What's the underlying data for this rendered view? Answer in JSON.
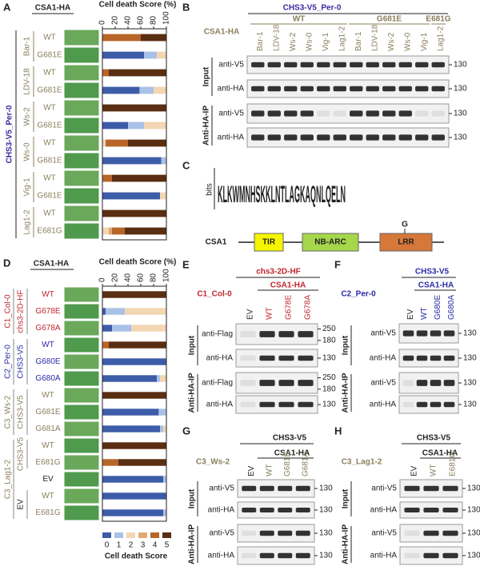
{
  "chart_data": [
    {
      "type": "bar",
      "orientation": "horizontal",
      "stacked": true,
      "title": "Cell death Score (%)",
      "categories": [
        "WT",
        "G681E",
        "WT",
        "G681E",
        "WT",
        "G681E",
        "WT",
        "G681E",
        "WT",
        "G681E",
        "WT",
        "E681G"
      ],
      "xlim": [
        0,
        100
      ],
      "xticks": [
        0,
        20,
        40,
        60,
        80,
        100
      ],
      "series": [
        {
          "color": "#3d5ca8",
          "values": [
            0,
            65,
            0,
            58,
            0,
            40,
            0,
            92,
            0,
            90,
            0,
            0
          ]
        },
        {
          "color": "#a9c1e6",
          "values": [
            0,
            20,
            0,
            22,
            0,
            25,
            0,
            8,
            0,
            0,
            0,
            0
          ]
        },
        {
          "color": "#f3d6b3",
          "values": [
            0,
            15,
            0,
            20,
            0,
            35,
            5,
            0,
            0,
            10,
            0,
            10
          ]
        },
        {
          "color": "#e2aa72",
          "values": [
            0,
            0,
            0,
            0,
            0,
            0,
            0,
            0,
            0,
            0,
            0,
            5
          ]
        },
        {
          "color": "#b8652a",
          "values": [
            60,
            0,
            10,
            0,
            0,
            0,
            35,
            0,
            15,
            0,
            0,
            20
          ]
        },
        {
          "color": "#5a2e12",
          "values": [
            40,
            0,
            90,
            0,
            100,
            0,
            60,
            0,
            85,
            0,
            100,
            65
          ]
        }
      ]
    },
    {
      "type": "bar",
      "orientation": "horizontal",
      "stacked": true,
      "title": "Cell death Score (%)",
      "categories": [
        "WT",
        "G678E",
        "G678A",
        "WT",
        "G680E",
        "G680A",
        "WT",
        "G681E",
        "G681A",
        "WT",
        "E681G",
        "EV",
        "WT",
        "E681G"
      ],
      "xlim": [
        0,
        100
      ],
      "xticks": [
        0,
        20,
        40,
        60,
        80,
        100
      ],
      "legend_title": "Cell death Score",
      "series": [
        {
          "name": "0",
          "color": "#3d5ca8",
          "values": [
            0,
            5,
            15,
            0,
            100,
            85,
            0,
            88,
            90,
            0,
            0,
            95,
            100,
            95
          ]
        },
        {
          "name": "1",
          "color": "#a9c1e6",
          "values": [
            0,
            30,
            30,
            0,
            0,
            5,
            0,
            12,
            5,
            0,
            0,
            5,
            0,
            5
          ]
        },
        {
          "name": "2",
          "color": "#f3d6b3",
          "values": [
            0,
            65,
            55,
            0,
            0,
            10,
            0,
            0,
            5,
            0,
            0,
            0,
            0,
            0
          ]
        },
        {
          "name": "3",
          "color": "#e2aa72",
          "values": [
            0,
            0,
            0,
            0,
            0,
            0,
            0,
            0,
            0,
            0,
            0,
            0,
            0,
            0
          ]
        },
        {
          "name": "4",
          "color": "#b8652a",
          "values": [
            0,
            0,
            0,
            10,
            0,
            0,
            0,
            0,
            0,
            0,
            25,
            0,
            0,
            0
          ]
        },
        {
          "name": "5",
          "color": "#5a2e12",
          "values": [
            100,
            0,
            0,
            90,
            0,
            0,
            100,
            0,
            0,
            100,
            75,
            0,
            0,
            0
          ]
        }
      ]
    }
  ],
  "panel_a": {
    "letter": "A",
    "header": "CSA1-HA",
    "genotype": "CHS3-V5_Per-0",
    "groups": [
      "Bar-1",
      "LDV-18",
      "Ws-2",
      "Ws-0",
      "Vig-1",
      "Lag1-2"
    ]
  },
  "panel_d": {
    "letter": "D",
    "header": "CSA1-HA",
    "outer": [
      "C1_Col-0",
      "C2_Per-0",
      "C3_Ws-2",
      "C3_Lag1-2"
    ],
    "inner": [
      "chs3-2D-HF",
      "CHS3-V5",
      "CHS3-V5",
      "CHS3-V5",
      "EV"
    ]
  },
  "panel_b": {
    "letter": "B",
    "title": "CHS3-V5_Per-0",
    "construct": "CSA1-HA",
    "subgroups": [
      "WT",
      "G681E",
      "E681G"
    ],
    "lanes": [
      "Bar-1",
      "LDV-18",
      "Ws-2",
      "Ws-0",
      "Vig-1",
      "Lag1-2",
      "Bar-1",
      "LDV-18",
      "Ws-2",
      "Ws-0",
      "Vig-1",
      "Lag1-2"
    ],
    "groups": [
      "Input",
      "Anti-HA-IP"
    ],
    "rows": [
      {
        "label": "anti-V5",
        "markers": [
          130
        ]
      },
      {
        "label": "anti-HA",
        "markers": [
          130
        ]
      },
      {
        "label": "anti-V5",
        "markers": [
          130
        ]
      },
      {
        "label": "anti-HA",
        "markers": [
          130
        ]
      }
    ]
  },
  "panel_c": {
    "letter": "C",
    "axis": "bits",
    "logo": "KLKWMNHSKKLNTLAGKAQNLQELN",
    "protein": "CSA1",
    "domains": [
      "TIR",
      "NB-ARC",
      "LRR"
    ],
    "site": "G"
  },
  "panel_e": {
    "letter": "E",
    "title": "chs3-2D-HF",
    "strain": "C1_Col-0",
    "construct": "CSA1-HA",
    "lanes": [
      "EV",
      "WT",
      "G678E",
      "G678A"
    ],
    "groups": [
      "Input",
      "Anti-HA-IP"
    ],
    "rows": [
      {
        "label": "anti-Flag",
        "markers": [
          250,
          180
        ]
      },
      {
        "label": "anti-HA",
        "markers": [
          130
        ]
      },
      {
        "label": "anti-Flag",
        "markers": [
          250,
          180
        ]
      },
      {
        "label": "anti-HA",
        "markers": [
          130
        ]
      }
    ]
  },
  "panel_f": {
    "letter": "F",
    "title": "CHS3-V5",
    "strain": "C2_Per-0",
    "construct": "CSA1-HA",
    "lanes": [
      "EV",
      "WT",
      "G680E",
      "G680A"
    ],
    "groups": [
      "Input",
      "Anti-HA-IP"
    ],
    "rows": [
      {
        "label": "anti-V5",
        "markers": [
          130
        ]
      },
      {
        "label": "anti-HA",
        "markers": [
          130
        ]
      },
      {
        "label": "anti-V5",
        "markers": [
          130
        ]
      },
      {
        "label": "anti-HA",
        "markers": [
          130
        ]
      }
    ]
  },
  "panel_g": {
    "letter": "G",
    "title": "CHS3-V5",
    "strain": "C3_Ws-2",
    "construct": "CSA1-HA",
    "lanes": [
      "EV",
      "WT",
      "G681E",
      "G681A"
    ],
    "groups": [
      "Input",
      "Anti-HA-IP"
    ],
    "rows": [
      {
        "label": "anti-V5",
        "markers": [
          130
        ]
      },
      {
        "label": "anti-HA",
        "markers": [
          130
        ]
      },
      {
        "label": "anti-V5",
        "markers": [
          130
        ]
      },
      {
        "label": "anti-HA",
        "markers": [
          130
        ]
      }
    ]
  },
  "panel_h": {
    "letter": "H",
    "title": "CHS3-V5",
    "strain": "C3_Lag1-2",
    "construct": "CSA1-HA",
    "lanes": [
      "EV",
      "WT",
      "E681G"
    ],
    "groups": [
      "Input",
      "Anti-HA-IP"
    ],
    "rows": [
      {
        "label": "anti-V5",
        "markers": [
          130
        ]
      },
      {
        "label": "anti-HA",
        "markers": [
          130
        ]
      },
      {
        "label": "anti-V5",
        "markers": [
          130
        ]
      },
      {
        "label": "anti-HA",
        "markers": [
          130
        ]
      }
    ]
  }
}
